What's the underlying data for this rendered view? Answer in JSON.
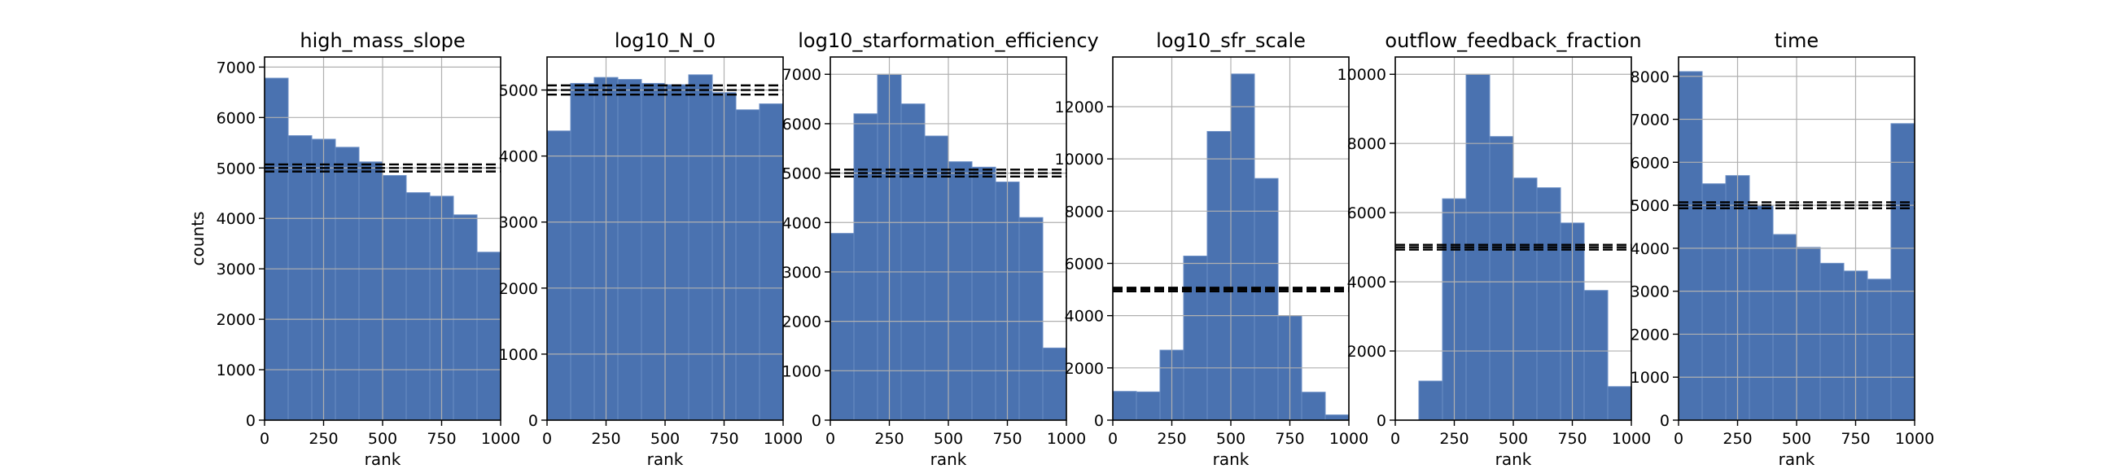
{
  "figure": {
    "ylabel": "counts",
    "bar_color": "#4a72b0",
    "bar_edge": "#6b8ec4",
    "grid_color": "#b0b0b0",
    "line_color": "#000000"
  },
  "chart_data": [
    {
      "type": "bar",
      "title": "high_mass_slope",
      "xlabel": "rank",
      "ylabel": "counts",
      "xlim": [
        0,
        1000
      ],
      "ylim": [
        0,
        7200
      ],
      "xticks": [
        "0",
        "250",
        "500",
        "750",
        "1000"
      ],
      "yticks": [
        "0",
        "1000",
        "2000",
        "3000",
        "4000",
        "5000",
        "6000",
        "7000"
      ],
      "bin_edges": [
        0,
        100,
        200,
        300,
        400,
        500,
        600,
        700,
        800,
        900,
        1000
      ],
      "values": [
        6780,
        5640,
        5570,
        5410,
        5120,
        4850,
        4510,
        4440,
        4070,
        3330
      ],
      "hlines": [
        5000,
        4930,
        5070
      ],
      "grid": true
    },
    {
      "type": "bar",
      "title": "log10_N_0",
      "xlabel": "rank",
      "ylabel": "",
      "xlim": [
        0,
        1000
      ],
      "ylim": [
        0,
        5500
      ],
      "xticks": [
        "0",
        "250",
        "500",
        "750",
        "1000"
      ],
      "yticks": [
        "0",
        "1000",
        "2000",
        "3000",
        "4000",
        "5000"
      ],
      "bin_edges": [
        0,
        100,
        200,
        300,
        400,
        500,
        600,
        700,
        800,
        900,
        1000
      ],
      "values": [
        4380,
        5100,
        5190,
        5160,
        5100,
        5080,
        5230,
        4960,
        4700,
        4790
      ],
      "hlines": [
        5000,
        4930,
        5070
      ],
      "grid": true
    },
    {
      "type": "bar",
      "title": "log10_starformation_efficiency",
      "xlabel": "rank",
      "ylabel": "",
      "xlim": [
        0,
        1000
      ],
      "ylim": [
        0,
        7350
      ],
      "xticks": [
        "0",
        "250",
        "500",
        "750",
        "1000"
      ],
      "yticks": [
        "0",
        "1000",
        "2000",
        "3000",
        "4000",
        "5000",
        "6000",
        "7000"
      ],
      "bin_edges": [
        0,
        100,
        200,
        300,
        400,
        500,
        600,
        700,
        800,
        900,
        1000
      ],
      "values": [
        3780,
        6200,
        7000,
        6400,
        5750,
        5230,
        5120,
        4820,
        4100,
        1460
      ],
      "hlines": [
        5000,
        4930,
        5070
      ],
      "grid": true
    },
    {
      "type": "bar",
      "title": "log10_sfr_scale",
      "xlabel": "rank",
      "ylabel": "",
      "xlim": [
        0,
        1000
      ],
      "ylim": [
        0,
        13900
      ],
      "xticks": [
        "0",
        "250",
        "500",
        "750",
        "1000"
      ],
      "yticks": [
        "0",
        "2000",
        "4000",
        "6000",
        "8000",
        "10000",
        "12000"
      ],
      "bin_edges": [
        0,
        100,
        200,
        300,
        400,
        500,
        600,
        700,
        800,
        900,
        1000
      ],
      "values": [
        1100,
        1080,
        2680,
        6280,
        11050,
        13250,
        9250,
        4000,
        1070,
        200
      ],
      "hlines": [
        5000,
        4930,
        5070
      ],
      "grid": true
    },
    {
      "type": "bar",
      "title": "outflow_feedback_fraction",
      "xlabel": "rank",
      "ylabel": "",
      "xlim": [
        0,
        1000
      ],
      "ylim": [
        0,
        10500
      ],
      "xticks": [
        "0",
        "250",
        "500",
        "750",
        "1000"
      ],
      "yticks": [
        "0",
        "2000",
        "4000",
        "6000",
        "8000",
        "10000"
      ],
      "bin_edges": [
        0,
        100,
        200,
        300,
        400,
        500,
        600,
        700,
        800,
        900,
        1000
      ],
      "values": [
        0,
        1130,
        6400,
        10000,
        8200,
        7000,
        6720,
        5700,
        3750,
        970
      ],
      "hlines": [
        5000,
        4930,
        5070
      ],
      "grid": true
    },
    {
      "type": "bar",
      "title": "time",
      "xlabel": "rank",
      "ylabel": "",
      "xlim": [
        0,
        1000
      ],
      "ylim": [
        0,
        8450
      ],
      "xticks": [
        "0",
        "250",
        "500",
        "750",
        "1000"
      ],
      "yticks": [
        "0",
        "1000",
        "2000",
        "3000",
        "4000",
        "5000",
        "6000",
        "7000",
        "8000"
      ],
      "bin_edges": [
        0,
        100,
        200,
        300,
        400,
        500,
        600,
        700,
        800,
        900,
        1000
      ],
      "values": [
        8110,
        5500,
        5690,
        4980,
        4320,
        4020,
        3650,
        3470,
        3280,
        6900
      ],
      "hlines": [
        5000,
        4930,
        5070
      ],
      "grid": true
    }
  ]
}
